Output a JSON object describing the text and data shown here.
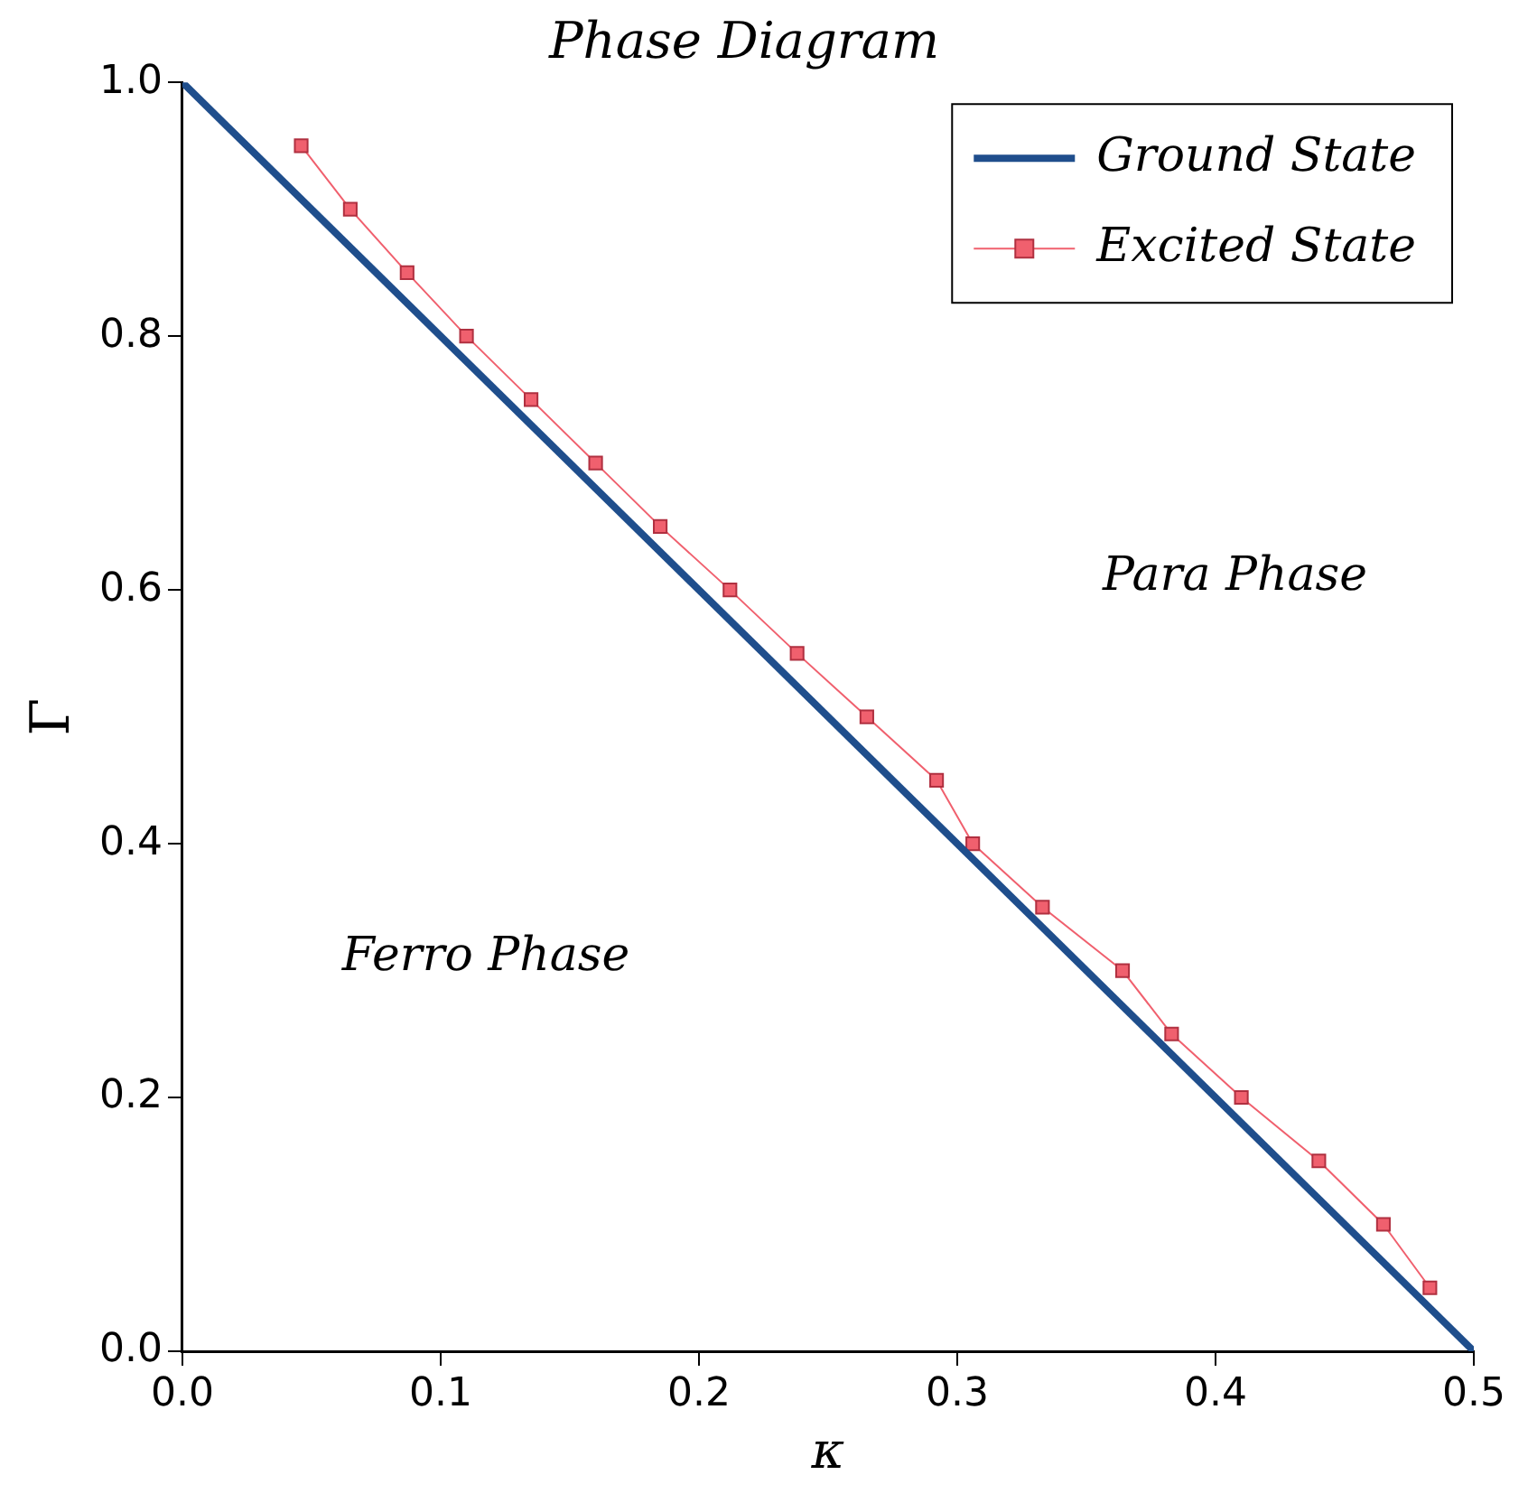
{
  "chart_data": {
    "type": "line",
    "title": "Phase Diagram",
    "xlabel": "κ",
    "ylabel": "Γ",
    "xlim": [
      0,
      0.5
    ],
    "xticks": [
      {
        "value": 0,
        "label": "0.0"
      },
      0.1,
      0.2,
      0.3,
      0.4,
      0.5
    ],
    "ylim": [
      0,
      1
    ],
    "yticks": [
      {
        "value": 0,
        "label": "0.0"
      },
      0.2,
      0.4,
      0.6,
      0.8,
      {
        "value": 1,
        "label": "1.0"
      }
    ],
    "grid": false,
    "legend": "top right",
    "series": [
      {
        "name": "Ground State",
        "color": "#1f4e8c",
        "marker": "none",
        "x": [
          0,
          0.5
        ],
        "values": [
          1,
          0
        ]
      },
      {
        "name": "Excited State",
        "color": "#f0606e",
        "marker": "square",
        "x": [
          0.046,
          0.065,
          0.087,
          0.11,
          0.135,
          0.16,
          0.185,
          0.212,
          0.238,
          0.265,
          0.292,
          0.306,
          0.333,
          0.364,
          0.383,
          0.41,
          0.44,
          0.465,
          0.483
        ],
        "values": [
          0.95,
          0.9,
          0.85,
          0.8,
          0.75,
          0.7,
          0.65,
          0.6,
          0.55,
          0.5,
          0.45,
          0.4,
          0.35,
          0.3,
          0.25,
          0.2,
          0.15,
          0.1,
          0.05
        ]
      }
    ],
    "annotations": [
      "Para Phase",
      "Ferro Phase"
    ]
  }
}
